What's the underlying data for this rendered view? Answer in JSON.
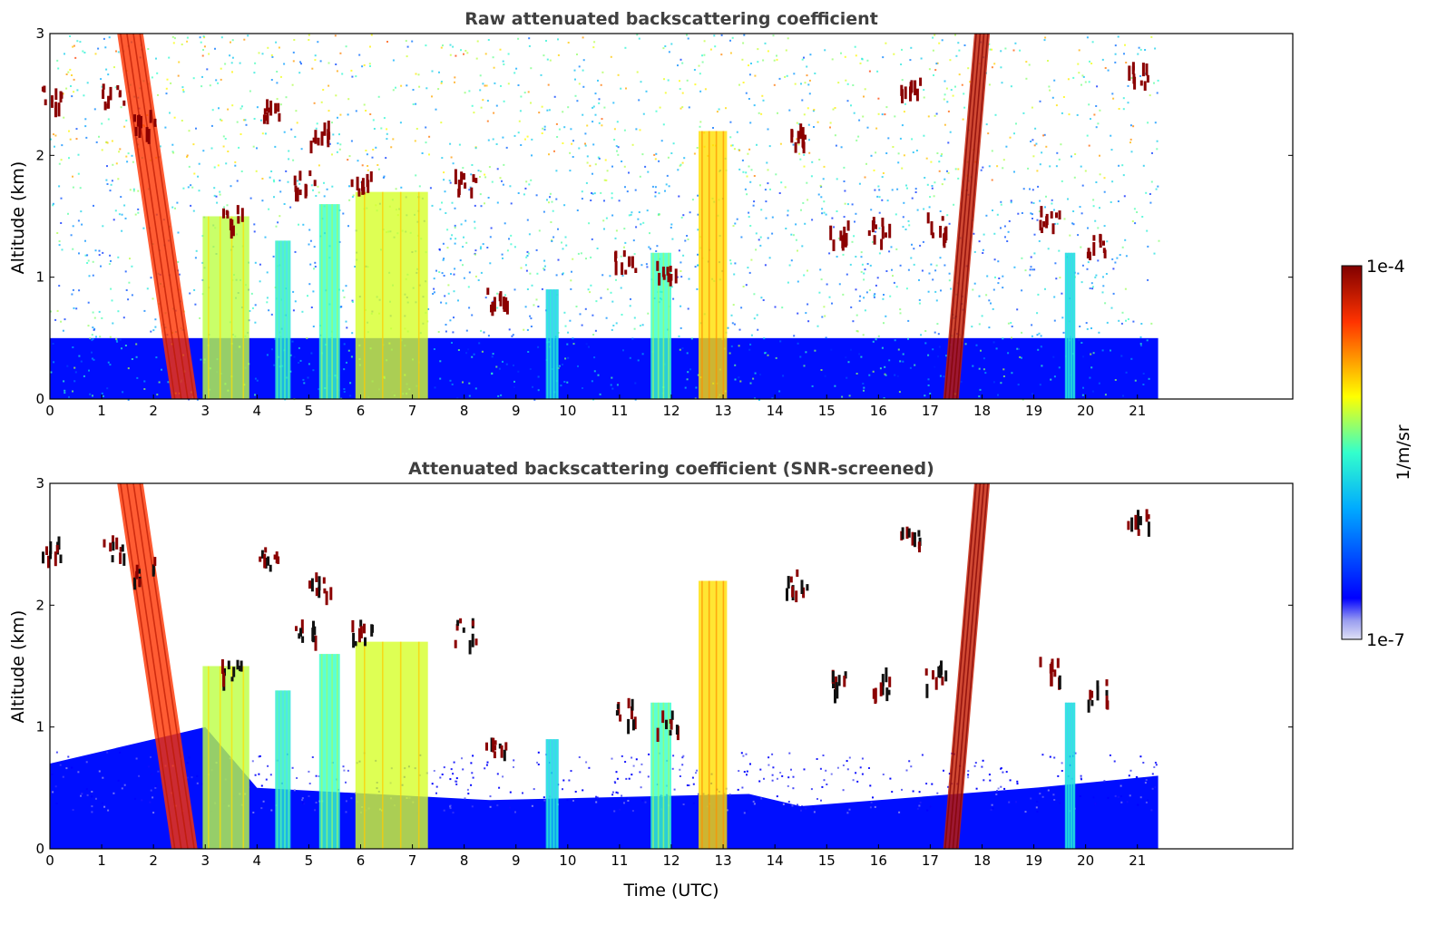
{
  "chart_data": [
    {
      "type": "heatmap",
      "title": "Raw attenuated backscattering coefficient",
      "xlabel": "",
      "ylabel": "Altitude (km)",
      "xlim": [
        0,
        24
      ],
      "ylim": [
        0,
        3
      ],
      "x_ticks": [
        "0",
        "1",
        "2",
        "3",
        "4",
        "5",
        "6",
        "7",
        "8",
        "9",
        "10",
        "11",
        "12",
        "13",
        "14",
        "15",
        "16",
        "17",
        "18",
        "19",
        "20",
        "21"
      ],
      "y_ticks": [
        "0",
        "1",
        "2",
        "3"
      ],
      "data_end_time": 21.4,
      "plumes": [
        {
          "x": 2.6,
          "width": 0.5,
          "top_km": 3.0,
          "level": 0.85,
          "tilt": 0.35
        },
        {
          "x": 3.4,
          "width": 0.9,
          "top_km": 1.5,
          "level": 0.6
        },
        {
          "x": 4.5,
          "width": 0.3,
          "top_km": 1.3,
          "level": 0.45
        },
        {
          "x": 5.4,
          "width": 0.4,
          "top_km": 1.6,
          "level": 0.5
        },
        {
          "x": 6.6,
          "width": 1.4,
          "top_km": 1.7,
          "level": 0.62
        },
        {
          "x": 9.7,
          "width": 0.25,
          "top_km": 0.9,
          "level": 0.4
        },
        {
          "x": 11.8,
          "width": 0.4,
          "top_km": 1.2,
          "level": 0.5
        },
        {
          "x": 12.8,
          "width": 0.55,
          "top_km": 2.2,
          "level": 0.68
        },
        {
          "x": 17.4,
          "width": 0.3,
          "top_km": 3.0,
          "level": 0.92,
          "tilt": -0.2
        },
        {
          "x": 19.7,
          "width": 0.2,
          "top_km": 1.2,
          "level": 0.4
        }
      ],
      "cloud_patches": [
        {
          "x": 0.05,
          "alt_km": 2.5
        },
        {
          "x": 1.2,
          "alt_km": 2.5
        },
        {
          "x": 1.8,
          "alt_km": 2.3
        },
        {
          "x": 3.5,
          "alt_km": 1.5
        },
        {
          "x": 4.2,
          "alt_km": 2.4
        },
        {
          "x": 4.9,
          "alt_km": 1.8
        },
        {
          "x": 5.2,
          "alt_km": 2.2
        },
        {
          "x": 6.0,
          "alt_km": 1.8
        },
        {
          "x": 8.0,
          "alt_km": 1.8
        },
        {
          "x": 8.6,
          "alt_km": 0.85
        },
        {
          "x": 11.1,
          "alt_km": 1.15
        },
        {
          "x": 11.9,
          "alt_km": 1.05
        },
        {
          "x": 14.4,
          "alt_km": 2.2
        },
        {
          "x": 15.2,
          "alt_km": 1.4
        },
        {
          "x": 16.0,
          "alt_km": 1.4
        },
        {
          "x": 16.6,
          "alt_km": 2.6
        },
        {
          "x": 17.1,
          "alt_km": 1.45
        },
        {
          "x": 19.3,
          "alt_km": 1.5
        },
        {
          "x": 20.2,
          "alt_km": 1.3
        },
        {
          "x": 21.0,
          "alt_km": 2.7
        }
      ]
    },
    {
      "type": "heatmap",
      "title": "Attenuated backscattering coefficient (SNR-screened)",
      "xlabel": "Time (UTC)",
      "ylabel": "Altitude (km)",
      "xlim": [
        0,
        24
      ],
      "ylim": [
        0,
        3
      ],
      "x_ticks": [
        "0",
        "1",
        "2",
        "3",
        "4",
        "5",
        "6",
        "7",
        "8",
        "9",
        "10",
        "11",
        "12",
        "13",
        "14",
        "15",
        "16",
        "17",
        "18",
        "19",
        "20",
        "21"
      ],
      "y_ticks": [
        "0",
        "1",
        "2",
        "3"
      ],
      "data_end_time": 21.4,
      "screen_height_km": [
        {
          "t": 0,
          "h": 0.7
        },
        {
          "t": 3,
          "h": 1.0
        },
        {
          "t": 4,
          "h": 0.5
        },
        {
          "t": 8.5,
          "h": 0.4
        },
        {
          "t": 13.5,
          "h": 0.45
        },
        {
          "t": 14.5,
          "h": 0.35
        },
        {
          "t": 19,
          "h": 0.5
        },
        {
          "t": 21.4,
          "h": 0.6
        }
      ]
    }
  ],
  "colorbar": {
    "label": "1/m/sr",
    "max_label": "1e-4",
    "min_label": "1e-7",
    "colormap": "jet",
    "scale": "log"
  },
  "colors": {
    "frame": "#000000",
    "title": "#404040",
    "cloud_core": "#8b0000",
    "cloud_black": "#111111"
  }
}
